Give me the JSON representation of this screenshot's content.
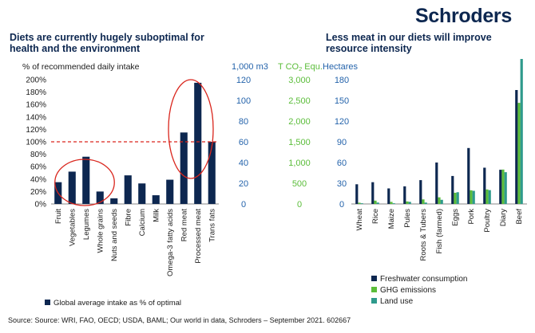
{
  "brand": "Schroders",
  "source": "Source: Source: WRI, FAO, OECD; USDA, BAML; Our world in data, Schroders – September 2021. 602667",
  "colors": {
    "navy": "#0d2750",
    "green": "#5bbd3a",
    "teal": "#2e9a8c",
    "red": "#d9251c",
    "axis_blue": "#2463ab"
  },
  "chart_data": [
    {
      "type": "bar",
      "title_lines": [
        "Diets are currently hugely suboptimal for",
        "health and the environment"
      ],
      "ylabel": "% of recommended daily intake",
      "yticks": [
        "0%",
        "20%",
        "40%",
        "60%",
        "80%",
        "100%",
        "120%",
        "140%",
        "160%",
        "180%",
        "200%"
      ],
      "ylim": [
        0,
        200
      ],
      "reference_line": 100,
      "categories": [
        "Fruit",
        "Vegetables",
        "Legumes",
        "Whole grains",
        "Nuts and seeds",
        "Fibre",
        "Calcium",
        "Milk",
        "Omega-3 fatty acids",
        "Red meat",
        "Processed meat",
        "Trans fats"
      ],
      "series": [
        {
          "name": "Global average intake as % of optimal",
          "values": [
            35,
            52,
            76,
            20,
            9,
            46,
            33,
            14,
            39,
            115,
            195,
            100
          ]
        }
      ],
      "highlighted_groups": [
        [
          "Legumes",
          "Whole grains",
          "Vegetables"
        ],
        [
          "Red meat",
          "Processed meat"
        ]
      ],
      "legend_position": "bottom-left"
    },
    {
      "type": "bar",
      "title_lines": [
        "Less meat in our diets will improve",
        "resource intensity"
      ],
      "axes": [
        {
          "label": "1,000 m3",
          "ticks": [
            "0",
            "20",
            "40",
            "60",
            "80",
            "100",
            "120"
          ],
          "range": [
            0,
            120
          ]
        },
        {
          "label_prefix": "T CO",
          "label_sub": "2",
          "label_suffix": " Equ.",
          "ticks": [
            "0",
            "500",
            "1,000",
            "1,500",
            "2,000",
            "2,500",
            "3,000"
          ],
          "range": [
            0,
            3000
          ]
        },
        {
          "label": "Hectares",
          "ticks": [
            "0",
            "30",
            "60",
            "90",
            "120",
            "150",
            "180"
          ],
          "range": [
            0,
            180
          ]
        }
      ],
      "categories": [
        "Wheat",
        "Rice",
        "Maize",
        "Pules",
        "Roots & Tubers",
        "Fish (farmed)",
        "Eggs",
        "Pork",
        "Poultry",
        "Diary",
        "Beef"
      ],
      "series": [
        {
          "name": "Freshwater consumption",
          "axis": 0,
          "values": [
            19,
            21,
            15,
            17,
            23,
            40,
            27,
            54,
            35,
            33,
            110
          ]
        },
        {
          "name": "GHG emissions",
          "axis": 1,
          "values": [
            30,
            80,
            50,
            60,
            110,
            160,
            270,
            330,
            350,
            830,
            2440
          ]
        },
        {
          "name": "Land use",
          "axis": 2,
          "values": [
            1,
            2,
            1,
            3,
            2,
            6,
            17,
            19,
            20,
            46,
            210
          ]
        }
      ],
      "legend_position": "bottom-right"
    }
  ]
}
